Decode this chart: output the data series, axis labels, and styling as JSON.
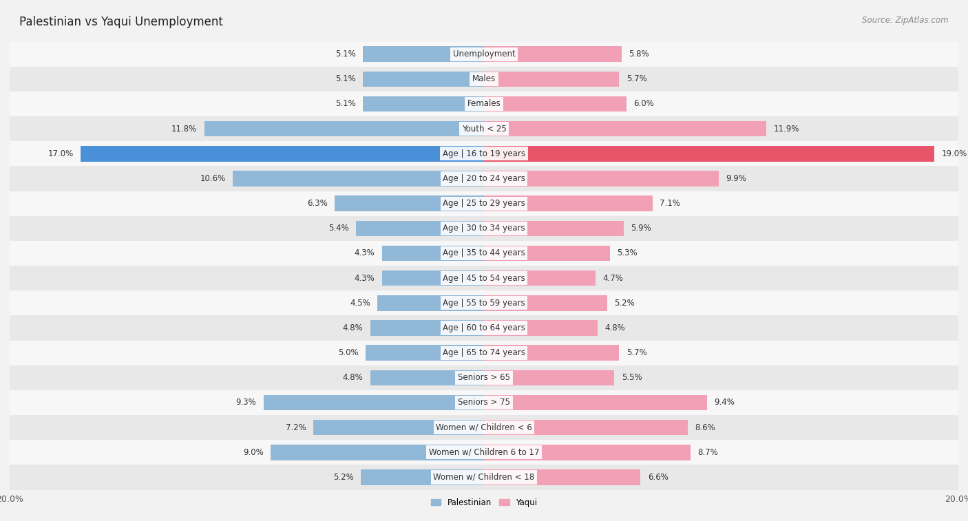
{
  "title": "Palestinian vs Yaqui Unemployment",
  "source": "Source: ZipAtlas.com",
  "categories": [
    "Unemployment",
    "Males",
    "Females",
    "Youth < 25",
    "Age | 16 to 19 years",
    "Age | 20 to 24 years",
    "Age | 25 to 29 years",
    "Age | 30 to 34 years",
    "Age | 35 to 44 years",
    "Age | 45 to 54 years",
    "Age | 55 to 59 years",
    "Age | 60 to 64 years",
    "Age | 65 to 74 years",
    "Seniors > 65",
    "Seniors > 75",
    "Women w/ Children < 6",
    "Women w/ Children 6 to 17",
    "Women w/ Children < 18"
  ],
  "palestinian": [
    5.1,
    5.1,
    5.1,
    11.8,
    17.0,
    10.6,
    6.3,
    5.4,
    4.3,
    4.3,
    4.5,
    4.8,
    5.0,
    4.8,
    9.3,
    7.2,
    9.0,
    5.2
  ],
  "yaqui": [
    5.8,
    5.7,
    6.0,
    11.9,
    19.0,
    9.9,
    7.1,
    5.9,
    5.3,
    4.7,
    5.2,
    4.8,
    5.7,
    5.5,
    9.4,
    8.6,
    8.7,
    6.6
  ],
  "palestinian_color": "#92b8d8",
  "yaqui_color": "#f2a0b5",
  "highlight_palestinian_color": "#4a90d9",
  "highlight_yaqui_color": "#e8546a",
  "bar_height": 0.62,
  "max_val": 20.0,
  "bg_color": "#f2f2f2",
  "row_colors": [
    "#f7f7f7",
    "#e8e8e8"
  ],
  "title_fontsize": 12,
  "label_fontsize": 8.5,
  "value_fontsize": 8.5,
  "tick_fontsize": 9,
  "source_fontsize": 8.5,
  "highlight_indices": [
    4
  ]
}
